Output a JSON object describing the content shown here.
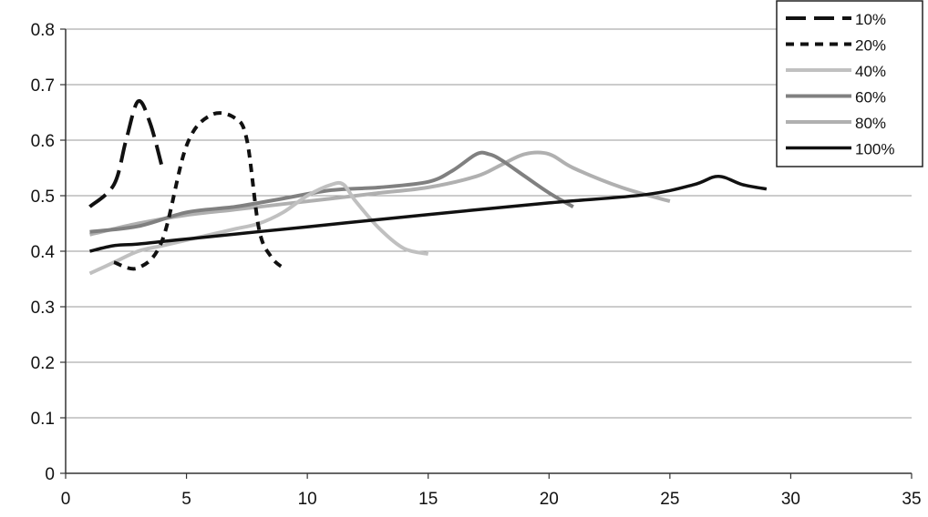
{
  "chart_data": {
    "type": "line",
    "title": "",
    "xlabel": "",
    "ylabel": "",
    "xlim": [
      0,
      35
    ],
    "ylim": [
      0,
      0.8
    ],
    "x_ticks": [
      0,
      5,
      10,
      15,
      20,
      25,
      30,
      35
    ],
    "y_ticks": [
      0,
      0.1,
      0.2,
      0.3,
      0.4,
      0.5,
      0.6,
      0.7,
      0.8
    ],
    "x_tick_labels": [
      "0",
      "5",
      "10",
      "15",
      "20",
      "25",
      "30",
      "35"
    ],
    "y_tick_labels": [
      "0",
      "0.1",
      "0.2",
      "0.3",
      "0.4",
      "0.5",
      "0.6",
      "0.7",
      "0.8"
    ],
    "grid": "horizontal",
    "legend_position": "top-right",
    "series": [
      {
        "name": "10%",
        "style": "long-dash",
        "color": "#111111",
        "x": [
          1,
          2,
          2.5,
          3,
          3.5,
          4
        ],
        "y": [
          0.48,
          0.52,
          0.6,
          0.67,
          0.63,
          0.55
        ]
      },
      {
        "name": "20%",
        "style": "short-dash",
        "color": "#111111",
        "x": [
          2,
          3,
          4,
          5,
          6,
          7,
          7.5,
          8,
          8.5,
          9
        ],
        "y": [
          0.38,
          0.37,
          0.42,
          0.59,
          0.645,
          0.64,
          0.6,
          0.44,
          0.39,
          0.37
        ]
      },
      {
        "name": "40%",
        "style": "solid",
        "color": "#c0c0c0",
        "x": [
          1,
          2,
          3,
          4,
          5,
          6,
          7,
          8,
          9,
          10,
          11,
          11.5,
          12,
          13,
          14,
          15
        ],
        "y": [
          0.36,
          0.38,
          0.4,
          0.41,
          0.42,
          0.43,
          0.44,
          0.45,
          0.47,
          0.5,
          0.52,
          0.52,
          0.49,
          0.44,
          0.405,
          0.395
        ]
      },
      {
        "name": "60%",
        "style": "solid",
        "color": "#808080",
        "x": [
          1,
          3,
          5,
          7,
          9,
          11,
          13,
          15,
          16,
          17,
          17.5,
          18,
          19,
          20,
          21
        ],
        "y": [
          0.435,
          0.445,
          0.47,
          0.48,
          0.495,
          0.51,
          0.515,
          0.525,
          0.545,
          0.575,
          0.575,
          0.565,
          0.535,
          0.505,
          0.48
        ]
      },
      {
        "name": "80%",
        "style": "solid",
        "color": "#b0b0b0",
        "x": [
          1,
          3,
          5,
          7,
          9,
          11,
          13,
          15,
          17,
          18,
          19,
          20,
          21,
          23,
          25
        ],
        "y": [
          0.43,
          0.45,
          0.465,
          0.475,
          0.485,
          0.495,
          0.505,
          0.515,
          0.535,
          0.555,
          0.575,
          0.575,
          0.55,
          0.515,
          0.49
        ]
      },
      {
        "name": "100%",
        "style": "solid",
        "color": "#111111",
        "x": [
          1,
          2,
          3,
          5,
          10,
          15,
          20,
          24,
          26,
          27,
          28,
          29
        ],
        "y": [
          0.4,
          0.41,
          0.413,
          0.422,
          0.444,
          0.466,
          0.487,
          0.502,
          0.52,
          0.535,
          0.52,
          0.512
        ]
      }
    ]
  }
}
